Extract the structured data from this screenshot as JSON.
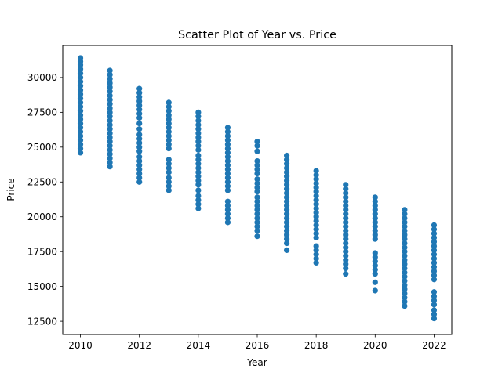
{
  "chart_data": {
    "type": "scatter",
    "title": "Scatter Plot of Year vs. Price",
    "xlabel": "Year",
    "ylabel": "Price",
    "xlim": [
      2009.4,
      2022.6
    ],
    "ylim": [
      11550,
      32300
    ],
    "xticks": [
      2010,
      2012,
      2014,
      2016,
      2018,
      2020,
      2022
    ],
    "yticks": [
      12500,
      15000,
      17500,
      20000,
      22500,
      25000,
      27500,
      30000
    ],
    "xtick_labels": [
      "2010",
      "2012",
      "2014",
      "2016",
      "2018",
      "2020",
      "2022"
    ],
    "ytick_labels": [
      "12500",
      "15000",
      "17500",
      "20000",
      "22500",
      "25000",
      "27500",
      "30000"
    ],
    "grid": false,
    "marker_color": "#1f77b4",
    "series": [
      {
        "points": [
          [
            2010,
            31400
          ],
          [
            2010,
            31150
          ],
          [
            2010,
            30900
          ],
          [
            2010,
            30600
          ],
          [
            2010,
            30300
          ],
          [
            2010,
            30000
          ],
          [
            2010,
            29700
          ],
          [
            2010,
            29400
          ],
          [
            2010,
            29100
          ],
          [
            2010,
            28800
          ],
          [
            2010,
            28500
          ],
          [
            2010,
            28200
          ],
          [
            2010,
            27900
          ],
          [
            2010,
            27600
          ],
          [
            2010,
            27300
          ],
          [
            2010,
            27000
          ],
          [
            2010,
            26700
          ],
          [
            2010,
            26400
          ],
          [
            2010,
            26100
          ],
          [
            2010,
            25800
          ],
          [
            2010,
            25500
          ],
          [
            2010,
            25200
          ],
          [
            2010,
            24900
          ],
          [
            2010,
            24600
          ],
          [
            2011,
            30500
          ],
          [
            2011,
            30200
          ],
          [
            2011,
            29900
          ],
          [
            2011,
            29600
          ],
          [
            2011,
            29300
          ],
          [
            2011,
            29000
          ],
          [
            2011,
            28700
          ],
          [
            2011,
            28400
          ],
          [
            2011,
            28100
          ],
          [
            2011,
            27800
          ],
          [
            2011,
            27500
          ],
          [
            2011,
            27200
          ],
          [
            2011,
            26900
          ],
          [
            2011,
            26600
          ],
          [
            2011,
            26300
          ],
          [
            2011,
            26000
          ],
          [
            2011,
            25700
          ],
          [
            2011,
            25400
          ],
          [
            2011,
            25100
          ],
          [
            2011,
            24800
          ],
          [
            2011,
            24500
          ],
          [
            2011,
            24200
          ],
          [
            2011,
            23900
          ],
          [
            2011,
            23600
          ],
          [
            2012,
            29200
          ],
          [
            2012,
            28900
          ],
          [
            2012,
            28600
          ],
          [
            2012,
            28300
          ],
          [
            2012,
            28000
          ],
          [
            2012,
            27700
          ],
          [
            2012,
            27400
          ],
          [
            2012,
            27100
          ],
          [
            2012,
            26700
          ],
          [
            2012,
            26300
          ],
          [
            2012,
            25900
          ],
          [
            2012,
            25600
          ],
          [
            2012,
            25300
          ],
          [
            2012,
            25000
          ],
          [
            2012,
            24700
          ],
          [
            2012,
            24300
          ],
          [
            2012,
            24000
          ],
          [
            2012,
            23700
          ],
          [
            2012,
            23400
          ],
          [
            2012,
            23100
          ],
          [
            2012,
            22800
          ],
          [
            2012,
            22500
          ],
          [
            2013,
            28200
          ],
          [
            2013,
            27900
          ],
          [
            2013,
            27600
          ],
          [
            2013,
            27300
          ],
          [
            2013,
            27000
          ],
          [
            2013,
            26700
          ],
          [
            2013,
            26400
          ],
          [
            2013,
            26100
          ],
          [
            2013,
            25800
          ],
          [
            2013,
            25500
          ],
          [
            2013,
            25200
          ],
          [
            2013,
            24900
          ],
          [
            2013,
            24100
          ],
          [
            2013,
            23800
          ],
          [
            2013,
            23500
          ],
          [
            2013,
            23200
          ],
          [
            2013,
            22800
          ],
          [
            2013,
            22500
          ],
          [
            2013,
            22200
          ],
          [
            2013,
            21900
          ],
          [
            2014,
            27500
          ],
          [
            2014,
            27200
          ],
          [
            2014,
            26900
          ],
          [
            2014,
            26600
          ],
          [
            2014,
            26300
          ],
          [
            2014,
            26000
          ],
          [
            2014,
            25700
          ],
          [
            2014,
            25400
          ],
          [
            2014,
            25100
          ],
          [
            2014,
            24800
          ],
          [
            2014,
            24400
          ],
          [
            2014,
            24100
          ],
          [
            2014,
            23800
          ],
          [
            2014,
            23500
          ],
          [
            2014,
            23200
          ],
          [
            2014,
            22900
          ],
          [
            2014,
            22600
          ],
          [
            2014,
            22300
          ],
          [
            2014,
            21900
          ],
          [
            2014,
            21500
          ],
          [
            2014,
            21200
          ],
          [
            2014,
            20900
          ],
          [
            2014,
            20600
          ],
          [
            2015,
            26400
          ],
          [
            2015,
            26100
          ],
          [
            2015,
            25800
          ],
          [
            2015,
            25500
          ],
          [
            2015,
            25200
          ],
          [
            2015,
            24900
          ],
          [
            2015,
            24600
          ],
          [
            2015,
            24300
          ],
          [
            2015,
            24000
          ],
          [
            2015,
            23700
          ],
          [
            2015,
            23400
          ],
          [
            2015,
            23100
          ],
          [
            2015,
            22800
          ],
          [
            2015,
            22500
          ],
          [
            2015,
            22200
          ],
          [
            2015,
            21900
          ],
          [
            2015,
            21100
          ],
          [
            2015,
            20800
          ],
          [
            2015,
            20500
          ],
          [
            2015,
            20200
          ],
          [
            2015,
            19900
          ],
          [
            2015,
            19600
          ],
          [
            2016,
            25400
          ],
          [
            2016,
            25100
          ],
          [
            2016,
            24700
          ],
          [
            2016,
            24000
          ],
          [
            2016,
            23700
          ],
          [
            2016,
            23400
          ],
          [
            2016,
            23100
          ],
          [
            2016,
            22700
          ],
          [
            2016,
            22400
          ],
          [
            2016,
            22100
          ],
          [
            2016,
            21800
          ],
          [
            2016,
            21400
          ],
          [
            2016,
            21100
          ],
          [
            2016,
            20800
          ],
          [
            2016,
            20500
          ],
          [
            2016,
            20200
          ],
          [
            2016,
            19900
          ],
          [
            2016,
            19600
          ],
          [
            2016,
            19300
          ],
          [
            2016,
            19000
          ],
          [
            2016,
            18600
          ],
          [
            2017,
            24400
          ],
          [
            2017,
            24100
          ],
          [
            2017,
            23800
          ],
          [
            2017,
            23500
          ],
          [
            2017,
            23200
          ],
          [
            2017,
            22900
          ],
          [
            2017,
            22600
          ],
          [
            2017,
            22300
          ],
          [
            2017,
            22000
          ],
          [
            2017,
            21700
          ],
          [
            2017,
            21400
          ],
          [
            2017,
            21100
          ],
          [
            2017,
            20800
          ],
          [
            2017,
            20500
          ],
          [
            2017,
            20200
          ],
          [
            2017,
            19900
          ],
          [
            2017,
            19600
          ],
          [
            2017,
            19300
          ],
          [
            2017,
            19000
          ],
          [
            2017,
            18700
          ],
          [
            2017,
            18400
          ],
          [
            2017,
            18100
          ],
          [
            2017,
            17600
          ],
          [
            2018,
            23300
          ],
          [
            2018,
            23000
          ],
          [
            2018,
            22700
          ],
          [
            2018,
            22400
          ],
          [
            2018,
            22100
          ],
          [
            2018,
            21800
          ],
          [
            2018,
            21500
          ],
          [
            2018,
            21200
          ],
          [
            2018,
            20900
          ],
          [
            2018,
            20600
          ],
          [
            2018,
            20300
          ],
          [
            2018,
            20000
          ],
          [
            2018,
            19700
          ],
          [
            2018,
            19400
          ],
          [
            2018,
            19100
          ],
          [
            2018,
            18800
          ],
          [
            2018,
            18500
          ],
          [
            2018,
            17900
          ],
          [
            2018,
            17600
          ],
          [
            2018,
            17300
          ],
          [
            2018,
            17000
          ],
          [
            2018,
            16700
          ],
          [
            2019,
            22300
          ],
          [
            2019,
            22000
          ],
          [
            2019,
            21700
          ],
          [
            2019,
            21400
          ],
          [
            2019,
            21100
          ],
          [
            2019,
            20800
          ],
          [
            2019,
            20500
          ],
          [
            2019,
            20200
          ],
          [
            2019,
            19900
          ],
          [
            2019,
            19600
          ],
          [
            2019,
            19300
          ],
          [
            2019,
            19000
          ],
          [
            2019,
            18700
          ],
          [
            2019,
            18400
          ],
          [
            2019,
            18100
          ],
          [
            2019,
            17800
          ],
          [
            2019,
            17500
          ],
          [
            2019,
            17200
          ],
          [
            2019,
            16900
          ],
          [
            2019,
            16600
          ],
          [
            2019,
            16300
          ],
          [
            2019,
            15900
          ],
          [
            2020,
            21400
          ],
          [
            2020,
            21100
          ],
          [
            2020,
            20800
          ],
          [
            2020,
            20500
          ],
          [
            2020,
            20200
          ],
          [
            2020,
            19900
          ],
          [
            2020,
            19600
          ],
          [
            2020,
            19300
          ],
          [
            2020,
            19000
          ],
          [
            2020,
            18700
          ],
          [
            2020,
            18400
          ],
          [
            2020,
            17400
          ],
          [
            2020,
            17100
          ],
          [
            2020,
            16800
          ],
          [
            2020,
            16500
          ],
          [
            2020,
            16200
          ],
          [
            2020,
            15900
          ],
          [
            2020,
            15300
          ],
          [
            2020,
            14700
          ],
          [
            2021,
            20500
          ],
          [
            2021,
            20200
          ],
          [
            2021,
            19900
          ],
          [
            2021,
            19600
          ],
          [
            2021,
            19300
          ],
          [
            2021,
            19000
          ],
          [
            2021,
            18700
          ],
          [
            2021,
            18400
          ],
          [
            2021,
            18100
          ],
          [
            2021,
            17800
          ],
          [
            2021,
            17500
          ],
          [
            2021,
            17200
          ],
          [
            2021,
            16900
          ],
          [
            2021,
            16600
          ],
          [
            2021,
            16300
          ],
          [
            2021,
            16000
          ],
          [
            2021,
            15700
          ],
          [
            2021,
            15400
          ],
          [
            2021,
            15100
          ],
          [
            2021,
            14800
          ],
          [
            2021,
            14500
          ],
          [
            2021,
            14200
          ],
          [
            2021,
            13900
          ],
          [
            2021,
            13600
          ],
          [
            2022,
            19400
          ],
          [
            2022,
            19100
          ],
          [
            2022,
            18800
          ],
          [
            2022,
            18500
          ],
          [
            2022,
            18200
          ],
          [
            2022,
            17900
          ],
          [
            2022,
            17600
          ],
          [
            2022,
            17300
          ],
          [
            2022,
            17000
          ],
          [
            2022,
            16700
          ],
          [
            2022,
            16400
          ],
          [
            2022,
            16100
          ],
          [
            2022,
            15800
          ],
          [
            2022,
            15500
          ],
          [
            2022,
            14600
          ],
          [
            2022,
            14300
          ],
          [
            2022,
            14000
          ],
          [
            2022,
            13700
          ],
          [
            2022,
            13300
          ],
          [
            2022,
            13000
          ],
          [
            2022,
            12700
          ]
        ]
      }
    ]
  }
}
